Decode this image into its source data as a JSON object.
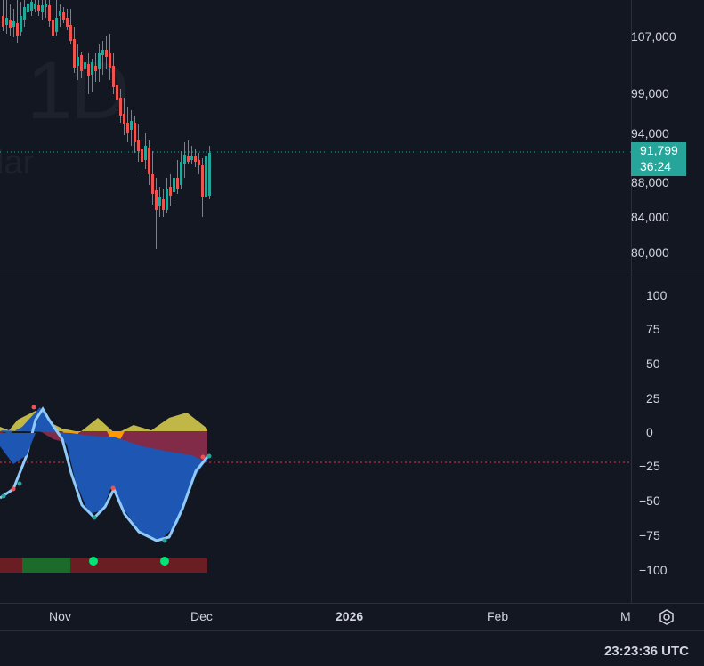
{
  "watermark": {
    "interval": "1D",
    "partial_text": "lar"
  },
  "price_axis": {
    "ticks": [
      "107,000",
      "99,000",
      "94,000",
      "88,000",
      "84,000",
      "80,000"
    ],
    "last_price": "91,799",
    "countdown": "36:24"
  },
  "oscillator_axis": {
    "ticks": [
      "100",
      "75",
      "50",
      "25",
      "0",
      "−25",
      "−50",
      "−75",
      "−100"
    ]
  },
  "time_axis": {
    "labels": [
      "Nov",
      "Dec",
      "2026",
      "Feb",
      "M"
    ]
  },
  "status": {
    "clock": "23:23:36 UTC"
  },
  "colors": {
    "background": "#131722",
    "bull": "#26a69a",
    "bear": "#ef5350",
    "last_price_line": "#26a69a",
    "osc_level_line": "#f23645",
    "wave_blue": "#1e56b4",
    "wave_light": "#90caf9",
    "wave_yellow": "#d4c94a",
    "wave_orange": "#ff9800",
    "wave_red": "#8e2e4e",
    "strip_red": "#6b1d24",
    "strip_green": "#1b6b2a",
    "dot_green": "#00e676"
  },
  "icons": {
    "settings": "settings-icon"
  }
}
